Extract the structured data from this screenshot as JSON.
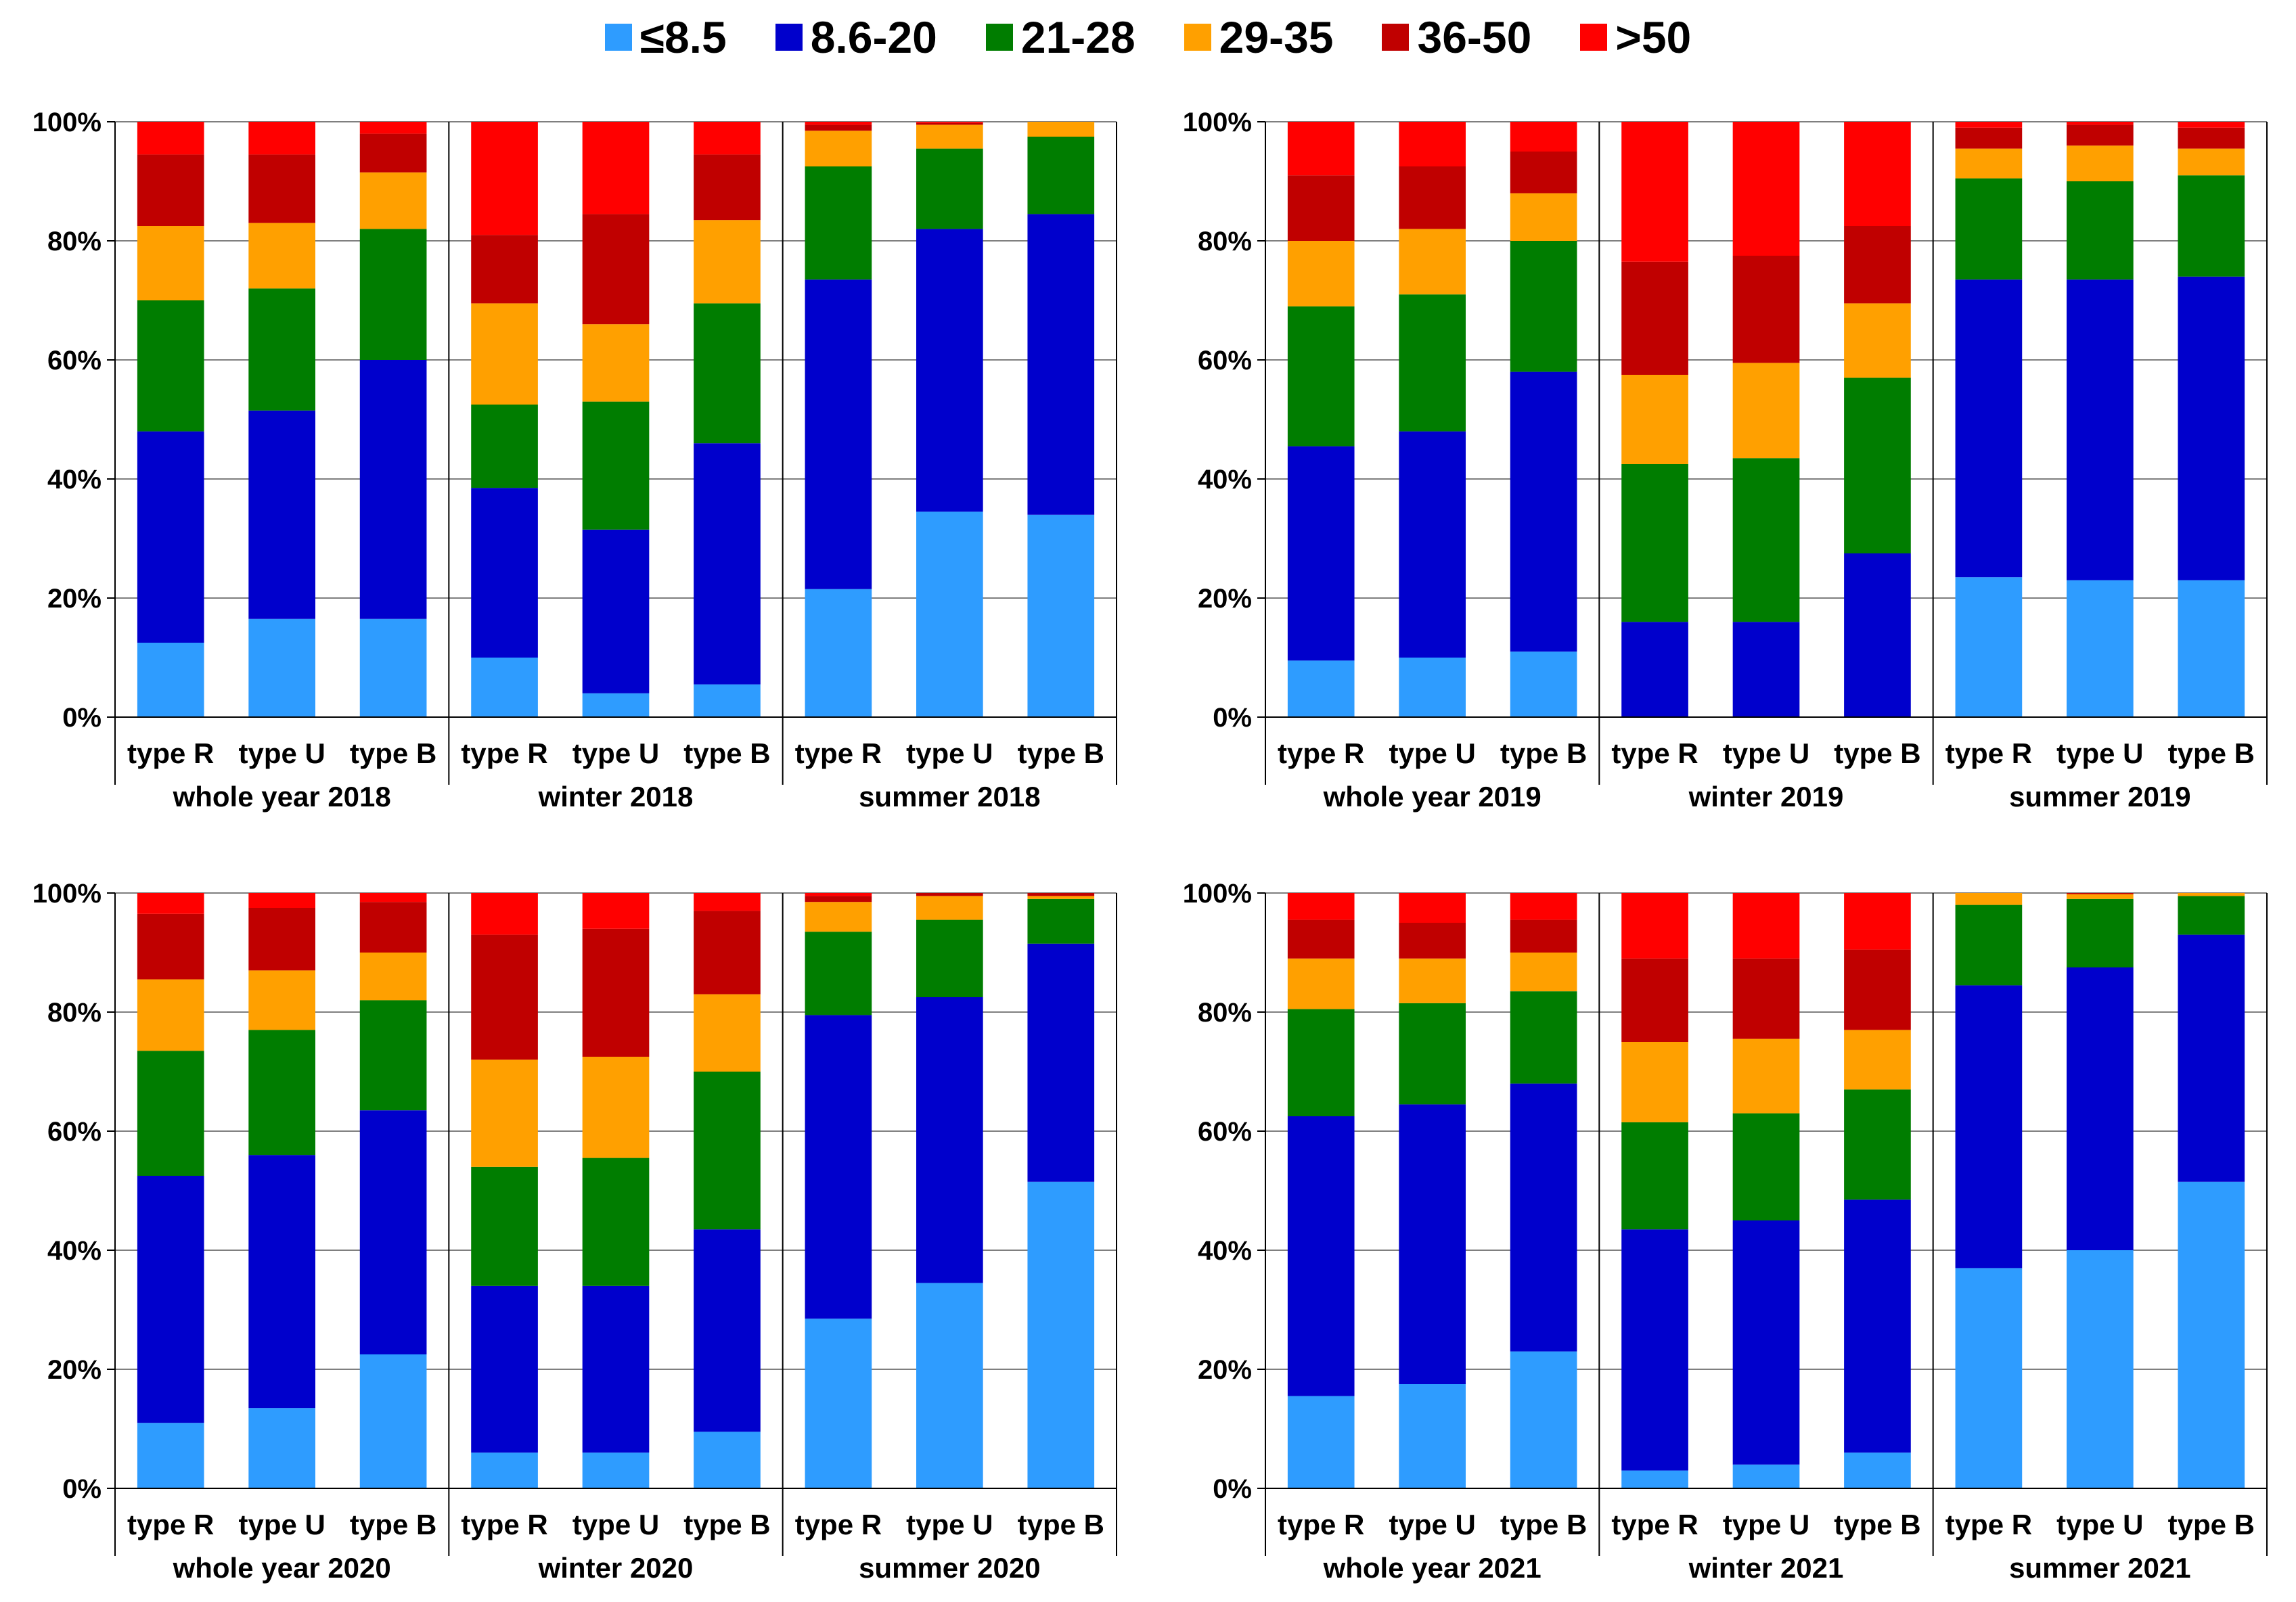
{
  "legend": [
    {
      "label": "≤8.5",
      "color": "#2e9cff"
    },
    {
      "label": "8.6-20",
      "color": "#0000cc"
    },
    {
      "label": "21-28",
      "color": "#007d00"
    },
    {
      "label": "29-35",
      "color": "#ffa000"
    },
    {
      "label": "36-50",
      "color": "#c00000"
    },
    {
      "label": ">50",
      "color": "#ff0000"
    }
  ],
  "chart_data": [
    {
      "type": "bar",
      "stacked": true,
      "title": "",
      "ylim": [
        0,
        100
      ],
      "yticks": [
        "0%",
        "20%",
        "40%",
        "60%",
        "80%",
        "100%"
      ],
      "categories": [
        "type R",
        "type U",
        "type B",
        "type R",
        "type U",
        "type B",
        "type R",
        "type U",
        "type B"
      ],
      "groups": [
        "whole year 2018",
        "winter 2018",
        "summer 2018"
      ],
      "series": [
        {
          "name": "≤8.5",
          "values": [
            12.5,
            16.5,
            16.5,
            10,
            4,
            5.5,
            21.5,
            34.5,
            34
          ]
        },
        {
          "name": "8.6-20",
          "values": [
            35.5,
            35,
            43.5,
            28.5,
            27.5,
            40.5,
            52,
            47.5,
            50.5
          ]
        },
        {
          "name": "21-28",
          "values": [
            22,
            20.5,
            22,
            14,
            21.5,
            23.5,
            19,
            13.5,
            13
          ]
        },
        {
          "name": "29-35",
          "values": [
            12.5,
            11,
            9.5,
            17,
            13,
            14,
            6,
            4,
            2.5
          ]
        },
        {
          "name": "36-50",
          "values": [
            12,
            11.5,
            6.5,
            11.5,
            18.5,
            11,
            1,
            0.3,
            0
          ]
        },
        {
          "name": ">50",
          "values": [
            5.5,
            5.5,
            2,
            19,
            15.5,
            5.5,
            0.5,
            0.2,
            0
          ]
        }
      ]
    },
    {
      "type": "bar",
      "stacked": true,
      "title": "",
      "ylim": [
        0,
        100
      ],
      "yticks": [
        "0%",
        "20%",
        "40%",
        "60%",
        "80%",
        "100%"
      ],
      "categories": [
        "type R",
        "type U",
        "type B",
        "type R",
        "type U",
        "type B",
        "type R",
        "type U",
        "type B"
      ],
      "groups": [
        "whole year 2019",
        "winter 2019",
        "summer 2019"
      ],
      "series": [
        {
          "name": "≤8.5",
          "values": [
            9.5,
            10,
            11,
            0,
            0,
            0,
            23.5,
            23,
            23
          ]
        },
        {
          "name": "8.6-20",
          "values": [
            36,
            38,
            47,
            16,
            16,
            27.5,
            50,
            50.5,
            51
          ]
        },
        {
          "name": "21-28",
          "values": [
            23.5,
            23,
            22,
            26.5,
            27.5,
            29.5,
            17,
            16.5,
            17
          ]
        },
        {
          "name": "29-35",
          "values": [
            11,
            11,
            8,
            15,
            16,
            12.5,
            5,
            6,
            4.5
          ]
        },
        {
          "name": "36-50",
          "values": [
            11,
            10.5,
            7,
            19,
            18,
            13,
            3.5,
            3.5,
            3.5
          ]
        },
        {
          "name": ">50",
          "values": [
            9,
            7.5,
            5,
            23.5,
            22.5,
            17.5,
            1,
            0.5,
            1
          ]
        }
      ]
    },
    {
      "type": "bar",
      "stacked": true,
      "title": "",
      "ylim": [
        0,
        100
      ],
      "yticks": [
        "0%",
        "20%",
        "40%",
        "60%",
        "80%",
        "100%"
      ],
      "categories": [
        "type R",
        "type U",
        "type B",
        "type R",
        "type U",
        "type B",
        "type R",
        "type U",
        "type B"
      ],
      "groups": [
        "whole year 2020",
        "winter 2020",
        "summer 2020"
      ],
      "series": [
        {
          "name": "≤8.5",
          "values": [
            11,
            13.5,
            22.5,
            6,
            6,
            9.5,
            28.5,
            34.5,
            51.5
          ]
        },
        {
          "name": "8.6-20",
          "values": [
            41.5,
            42.5,
            41,
            28,
            28,
            34,
            51,
            48,
            40
          ]
        },
        {
          "name": "21-28",
          "values": [
            21,
            21,
            18.5,
            20,
            21.5,
            26.5,
            14,
            13,
            7.5
          ]
        },
        {
          "name": "29-35",
          "values": [
            12,
            10,
            8,
            18,
            17,
            13,
            5,
            4,
            0.5
          ]
        },
        {
          "name": "36-50",
          "values": [
            11,
            10.5,
            8.5,
            21,
            21.5,
            14,
            1,
            0.5,
            0.5
          ]
        },
        {
          "name": ">50",
          "values": [
            3.5,
            2.5,
            1.5,
            7,
            6,
            3,
            0.5,
            0,
            0
          ]
        }
      ]
    },
    {
      "type": "bar",
      "stacked": true,
      "title": "",
      "ylim": [
        0,
        100
      ],
      "yticks": [
        "0%",
        "20%",
        "40%",
        "60%",
        "80%",
        "100%"
      ],
      "categories": [
        "type R",
        "type U",
        "type B",
        "type R",
        "type U",
        "type B",
        "type R",
        "type U",
        "type B"
      ],
      "groups": [
        "whole year 2021",
        "winter 2021",
        "summer 2021"
      ],
      "series": [
        {
          "name": "≤8.5",
          "values": [
            15.5,
            17.5,
            23,
            3,
            4,
            6,
            37,
            40,
            51.5
          ]
        },
        {
          "name": "8.6-20",
          "values": [
            47,
            47,
            45,
            40.5,
            41,
            42.5,
            47.5,
            47.5,
            41.5
          ]
        },
        {
          "name": "21-28",
          "values": [
            18,
            17,
            15.5,
            18,
            18,
            18.5,
            13.5,
            11.5,
            6.5
          ]
        },
        {
          "name": "29-35",
          "values": [
            8.5,
            7.5,
            6.5,
            13.5,
            12.5,
            10,
            2,
            0.8,
            0.5
          ]
        },
        {
          "name": "36-50",
          "values": [
            6.5,
            6,
            5.5,
            14,
            13.5,
            13.5,
            0,
            0.2,
            0
          ]
        },
        {
          "name": ">50",
          "values": [
            4.5,
            5,
            4.5,
            11,
            11,
            9.5,
            0,
            0,
            0
          ]
        }
      ]
    }
  ]
}
